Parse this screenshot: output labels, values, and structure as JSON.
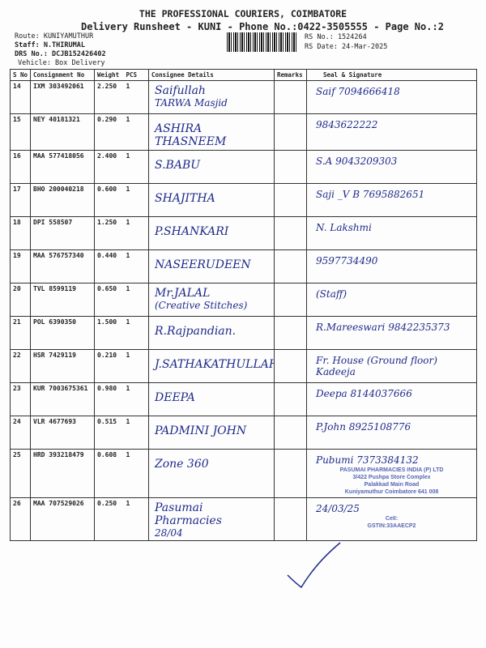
{
  "header": {
    "title": "THE PROFESSIONAL COURIERS, COIMBATORE",
    "subtitle": "Delivery Runsheet - KUNI - Phone No.:0422-3505555 - Page No.:2",
    "route": "Route: KUNIYAMUTHUR",
    "staff": "Staff: N.THIRUMAL",
    "drs_no": "DRS No.: DCJB152426402",
    "vehicle": "Vehicle: Box Delivery",
    "rs_no": "RS No.: 1524264",
    "rs_date": "RS Date: 24-Mar-2025"
  },
  "table": {
    "columns": [
      "S No",
      "Consignment No",
      "Weight",
      "PCS",
      "Consignee Details",
      "Remarks",
      "Seal & Signature"
    ],
    "rows": [
      {
        "sno": "14",
        "cn": "IXM 303492061",
        "weight": "2.250",
        "pcs": "1",
        "consignee": "Saifullah",
        "consignee2": "TARWA Masjid",
        "signature": "Saif 7094666418"
      },
      {
        "sno": "15",
        "cn": "NEY 40181321",
        "weight": "0.290",
        "pcs": "1",
        "consignee": "ASHIRA THASNEEM",
        "consignee2": "",
        "signature": "9843622222"
      },
      {
        "sno": "16",
        "cn": "MAA 577418056",
        "weight": "2.400",
        "pcs": "1",
        "consignee": "S.BABU",
        "consignee2": "",
        "signature": "S.A 9043209303"
      },
      {
        "sno": "17",
        "cn": "BHO 200040218",
        "weight": "0.600",
        "pcs": "1",
        "consignee": "SHAJITHA",
        "consignee2": "",
        "signature": "Saji _V B 7695882651"
      },
      {
        "sno": "18",
        "cn": "DPI 558507",
        "weight": "1.250",
        "pcs": "1",
        "consignee": "P.SHANKARI",
        "consignee2": "",
        "signature": "N. Lakshmi"
      },
      {
        "sno": "19",
        "cn": "MAA 576757340",
        "weight": "0.440",
        "pcs": "1",
        "consignee": "NASEERUDEEN",
        "consignee2": "",
        "signature": "9597734490"
      },
      {
        "sno": "20",
        "cn": "TVL 8599119",
        "weight": "0.650",
        "pcs": "1",
        "consignee": "Mr.JALAL",
        "consignee2": "(Creative Stitches)",
        "signature": "(Staff)"
      },
      {
        "sno": "21",
        "cn": "POL 6390350",
        "weight": "1.500",
        "pcs": "1",
        "consignee": "R.Rajpandian.",
        "consignee2": "",
        "signature": "R.Mareeswari 9842235373"
      },
      {
        "sno": "22",
        "cn": "HSR 7429119",
        "weight": "0.210",
        "pcs": "1",
        "consignee": "J.SATHAKATHULLAH",
        "consignee2": "",
        "signature": "Fr. House (Ground floor) Kadeeja"
      },
      {
        "sno": "23",
        "cn": "KUR 7003675361",
        "weight": "0.980",
        "pcs": "1",
        "consignee": "DEEPA",
        "consignee2": "",
        "signature": "Deepa 8144037666"
      },
      {
        "sno": "24",
        "cn": "VLR 4677693",
        "weight": "0.515",
        "pcs": "1",
        "consignee": "PADMINI JOHN",
        "consignee2": "",
        "signature": "P.John 8925108776"
      },
      {
        "sno": "25",
        "cn": "HRD 393218479",
        "weight": "0.608",
        "pcs": "1",
        "consignee": "Zone 360",
        "consignee2": "",
        "signature": "Pubumi 7373384132"
      },
      {
        "sno": "26",
        "cn": "MAA 707529026",
        "weight": "0.250",
        "pcs": "1",
        "consignee": "Pasumai Pharmacies",
        "consignee2": "28/04",
        "signature": "24/03/25"
      }
    ]
  },
  "stamp": {
    "line1": "PASUMAI PHARMACIES INDIA (P) LTD",
    "line2": "3/422 Pushpa Store Complex",
    "line3": "Palakkad Main Road",
    "line4": "Kuniyamuthur Coimbatore 641 008",
    "line5": "Cell:",
    "line6": "GSTIN:33AAECP2"
  },
  "ink_color": "#1f2a8a"
}
